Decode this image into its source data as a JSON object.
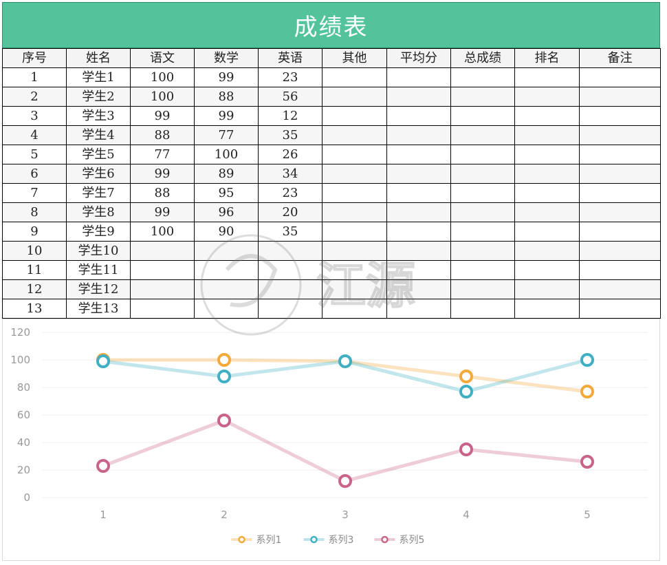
{
  "title": "成绩表",
  "headers": [
    "序号",
    "姓名",
    "语文",
    "数学",
    "英语",
    "其他",
    "平均分",
    "总成绩",
    "排名",
    "备注"
  ],
  "rows": [
    [
      "1",
      "学生1",
      "100",
      "99",
      "23",
      "",
      "",
      "",
      "",
      ""
    ],
    [
      "2",
      "学生2",
      "100",
      "88",
      "56",
      "",
      "",
      "",
      "",
      ""
    ],
    [
      "3",
      "学生3",
      "99",
      "99",
      "12",
      "",
      "",
      "",
      "",
      ""
    ],
    [
      "4",
      "学生4",
      "88",
      "77",
      "35",
      "",
      "",
      "",
      "",
      ""
    ],
    [
      "5",
      "学生5",
      "77",
      "100",
      "26",
      "",
      "",
      "",
      "",
      ""
    ],
    [
      "6",
      "学生6",
      "99",
      "89",
      "34",
      "",
      "",
      "",
      "",
      ""
    ],
    [
      "7",
      "学生7",
      "88",
      "95",
      "23",
      "",
      "",
      "",
      "",
      ""
    ],
    [
      "8",
      "学生8",
      "99",
      "96",
      "20",
      "",
      "",
      "",
      "",
      ""
    ],
    [
      "9",
      "学生9",
      "100",
      "90",
      "35",
      "",
      "",
      "",
      "",
      ""
    ],
    [
      "10",
      "学生10",
      "",
      "",
      "",
      "",
      "",
      "",
      "",
      ""
    ],
    [
      "11",
      "学生11",
      "",
      "",
      "",
      "",
      "",
      "",
      "",
      ""
    ],
    [
      "12",
      "学生12",
      "",
      "",
      "",
      "",
      "",
      "",
      "",
      ""
    ],
    [
      "13",
      "学生13",
      "",
      "",
      "",
      "",
      "",
      "",
      "",
      ""
    ]
  ],
  "watermark": "江源",
  "colors": {
    "title_bg": "#52c39b",
    "series1": "#f5a93b",
    "series3": "#3fb0c4",
    "series5": "#c9638a"
  },
  "chart_data": {
    "type": "line",
    "x": [
      "1",
      "2",
      "3",
      "4",
      "5"
    ],
    "ylim": [
      0,
      120
    ],
    "yticks": [
      "0",
      "20",
      "40",
      "60",
      "80",
      "100",
      "120"
    ],
    "grid": true,
    "legend_position": "bottom",
    "series": [
      {
        "name": "系列1",
        "values": [
          100,
          100,
          99,
          88,
          77
        ]
      },
      {
        "name": "系列3",
        "values": [
          99,
          88,
          99,
          77,
          100
        ]
      },
      {
        "name": "系列5",
        "values": [
          23,
          56,
          12,
          35,
          26
        ]
      }
    ]
  }
}
